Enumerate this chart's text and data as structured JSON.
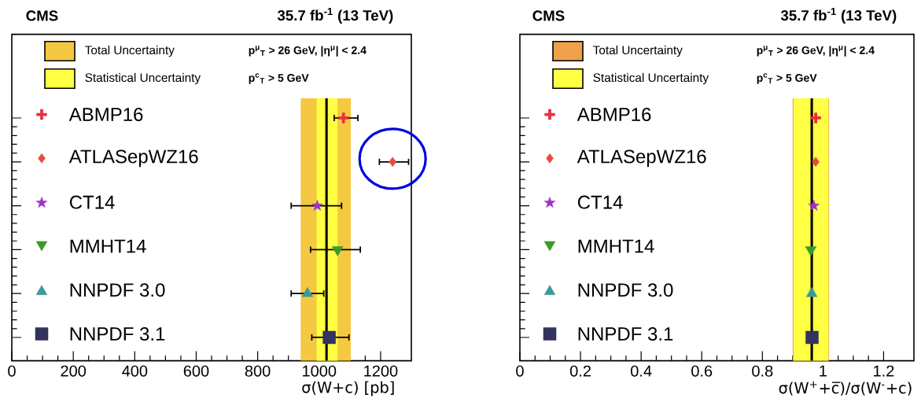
{
  "chart_data": [
    {
      "type": "scatter",
      "orientation": "horizontal",
      "title": "CMS",
      "subtitle": "35.7 fb$^{-1}$ (13 TeV)",
      "xlabel": "σ(W+c) [pb]",
      "categories": [
        null,
        null,
        null,
        null,
        null,
        null
      ],
      "xlim": [
        0,
        1300
      ],
      "xticks": [
        0,
        200,
        400,
        600,
        800,
        1000,
        1200
      ],
      "tick_labels": "x",
      "legend": "left",
      "annotations": [
        "p$^{μ}$$_{T}$ > 26 GeV, |η$^{μ}$| < 2.4",
        "p$^{c}$$_{T}$ > 5 GeV"
      ],
      "ref_lines": [
        {
          "axis": "x",
          "value": 1024,
          "color": "#000000"
        }
      ],
      "bands": [
        {
          "axis": "x",
          "from": 940,
          "to": 1103,
          "label": "Total Uncertainty",
          "color": "#f5c842"
        },
        {
          "axis": "x",
          "from": 992,
          "to": 1060,
          "label": "Statistical Uncertainty",
          "color": "#ffff44"
        }
      ],
      "series": [
        {
          "name": "ABMP16",
          "color": "#e8303a",
          "marker": "cross",
          "values": [
            1079,
            null,
            null,
            null,
            null,
            null
          ],
          "errors": [
            [
              1049,
              1126
            ],
            null,
            null,
            null,
            null,
            null
          ]
        },
        {
          "name": "ATLASepWZ16",
          "color": "#e84a40",
          "marker": "diamond",
          "values": [
            null,
            1239,
            null,
            null,
            null,
            null
          ],
          "errors": [
            null,
            [
              1196,
              1291
            ],
            null,
            null,
            null,
            null
          ]
        },
        {
          "name": "CT14",
          "color": "#9933cc",
          "marker": "star",
          "values": [
            null,
            null,
            994,
            null,
            null,
            null
          ],
          "errors": [
            null,
            null,
            [
              909,
              1073
            ],
            null,
            null,
            null
          ]
        },
        {
          "name": "MMHT14",
          "color": "#3a9a2a",
          "marker": "triangle-down",
          "values": [
            null,
            null,
            null,
            1060,
            null,
            null
          ],
          "errors": [
            null,
            null,
            null,
            [
              972,
              1134
            ],
            null,
            null
          ]
        },
        {
          "name": "NNPDF 3.0",
          "color": "#3a9a9a",
          "marker": "triangle",
          "values": [
            null,
            null,
            null,
            null,
            962,
            null
          ],
          "errors": [
            null,
            null,
            null,
            null,
            [
              909,
              1015
            ],
            null
          ]
        },
        {
          "name": "NNPDF 3.1",
          "color": "#33335e",
          "marker": "square",
          "values": [
            null,
            null,
            null,
            null,
            null,
            1033
          ],
          "errors": [
            null,
            null,
            null,
            null,
            null,
            [
              976,
              1097
            ]
          ]
        }
      ]
    },
    {
      "type": "scatter",
      "orientation": "horizontal",
      "title": "CMS",
      "subtitle": "35.7 fb$^{-1}$ (13 TeV)",
      "xlabel": "σ(W$^{+}$+c̅)/σ(W$^{-}$+c)",
      "categories": [
        null,
        null,
        null,
        null,
        null,
        null
      ],
      "xlim": [
        0,
        1.3
      ],
      "xticks": [
        0,
        0.2,
        0.4,
        0.6,
        0.8,
        1,
        1.2
      ],
      "tick_labels": "x",
      "legend": "left",
      "annotations": [
        "p$^{μ}$$_{T}$ > 26 GeV, |η$^{μ}$| < 2.4",
        "p$^{c}$$_{T}$ > 5 GeV"
      ],
      "ref_lines": [
        {
          "axis": "x",
          "value": 0.963,
          "color": "#000000"
        }
      ],
      "bands": [
        {
          "axis": "x",
          "from": 0.9,
          "to": 1.02,
          "label": "Total Uncertainty",
          "color": "#f0a04a"
        },
        {
          "axis": "x",
          "from": 0.903,
          "to": 1.018,
          "label": "Statistical Uncertainty",
          "color": "#ffff44"
        }
      ],
      "series": [
        {
          "name": "ABMP16",
          "color": "#e8303a",
          "marker": "cross",
          "values": [
            0.976,
            null,
            null,
            null,
            null,
            null
          ]
        },
        {
          "name": "ATLASepWZ16",
          "color": "#e84a40",
          "marker": "diamond",
          "values": [
            null,
            0.976,
            null,
            null,
            null,
            null
          ]
        },
        {
          "name": "CT14",
          "color": "#9933cc",
          "marker": "star",
          "values": [
            null,
            null,
            0.97,
            null,
            null,
            null
          ]
        },
        {
          "name": "MMHT14",
          "color": "#3a9a2a",
          "marker": "triangle-down",
          "values": [
            null,
            null,
            null,
            0.96,
            null,
            null
          ]
        },
        {
          "name": "NNPDF 3.0",
          "color": "#3a9a9a",
          "marker": "triangle",
          "values": [
            null,
            null,
            null,
            null,
            0.963,
            null
          ]
        },
        {
          "name": "NNPDF 3.1",
          "color": "#33335e",
          "marker": "square",
          "values": [
            null,
            null,
            null,
            null,
            null,
            0.964
          ]
        }
      ]
    }
  ]
}
